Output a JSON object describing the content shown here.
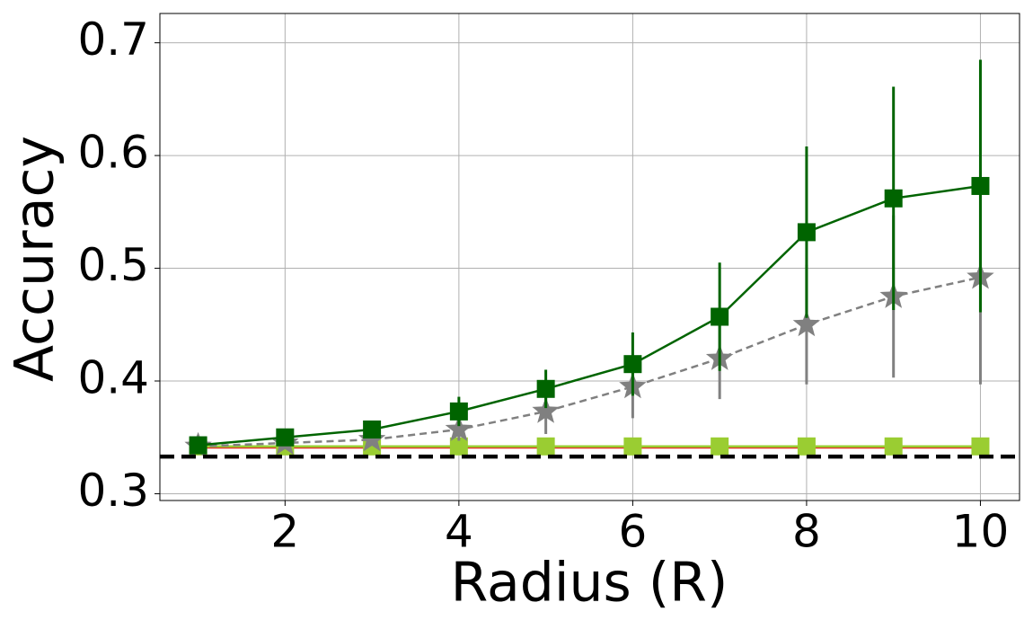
{
  "chart_data": {
    "type": "line",
    "xlabel": "Radius (R)",
    "ylabel": "Accuracy",
    "x": [
      1,
      2,
      3,
      4,
      5,
      6,
      7,
      8,
      9,
      10
    ],
    "series": [
      {
        "color": "#e03020",
        "linestyle": "solid",
        "marker": "none",
        "values": [
          0.341,
          0.341,
          0.341,
          0.341,
          0.341,
          0.341,
          0.341,
          0.341,
          0.341,
          0.341
        ]
      },
      {
        "color": "#9acd32",
        "linestyle": "solid",
        "marker": "square",
        "values": [
          0.342,
          0.342,
          0.342,
          0.342,
          0.342,
          0.342,
          0.342,
          0.342,
          0.342,
          0.342
        ]
      },
      {
        "color": "#808080",
        "linestyle": "dashed",
        "marker": "star",
        "values": [
          0.342,
          0.345,
          0.348,
          0.357,
          0.373,
          0.395,
          0.42,
          0.45,
          0.475,
          0.492
        ],
        "errors": [
          0.002,
          0.003,
          0.004,
          0.01,
          0.02,
          0.028,
          0.036,
          0.053,
          0.072,
          0.095
        ]
      },
      {
        "color": "#006400",
        "linestyle": "solid",
        "marker": "square",
        "values": [
          0.343,
          0.35,
          0.357,
          0.373,
          0.393,
          0.415,
          0.457,
          0.532,
          0.562,
          0.573
        ],
        "errors": [
          0.002,
          0.003,
          0.005,
          0.013,
          0.017,
          0.028,
          0.048,
          0.076,
          0.099,
          0.112
        ]
      }
    ],
    "hlines": [
      {
        "value": 0.333,
        "color": "#000000",
        "linestyle": "dashed"
      }
    ],
    "xlim": [
      0.56,
      10.45
    ],
    "ylim": [
      0.294,
      0.726
    ],
    "xticks": [
      2,
      4,
      6,
      8,
      10
    ],
    "yticks": [
      0.3,
      0.4,
      0.5,
      0.6,
      0.7
    ],
    "grid": true
  }
}
